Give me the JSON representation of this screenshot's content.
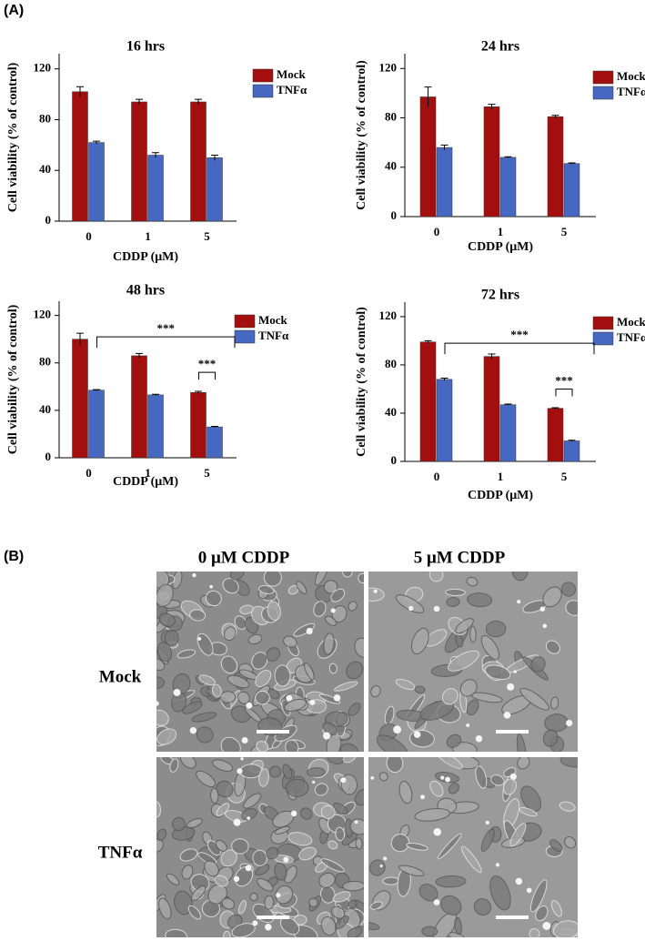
{
  "panels": {
    "a_label": "(A)",
    "b_label": "(B)",
    "columns": [
      "0 μM CDDP",
      "5 μM CDDP"
    ],
    "rows": [
      "Mock",
      "TNFα"
    ]
  },
  "chart_data": [
    {
      "type": "bar",
      "title": "16 hrs",
      "xlabel": "CDDP (μM)",
      "ylabel": "Cell viability (% of control)",
      "categories": [
        "0",
        "1",
        "5"
      ],
      "ylim": [
        0,
        132
      ],
      "yticks": [
        0,
        40,
        80,
        120
      ],
      "legend": "upper right",
      "series": [
        {
          "name": "Mock",
          "color": "#a30f0f",
          "values": [
            102,
            94,
            94
          ],
          "errors": [
            4,
            2,
            2
          ]
        },
        {
          "name": "TNFα",
          "color": "#4668c0",
          "values": [
            62,
            52,
            50
          ],
          "errors": [
            1,
            2,
            2
          ]
        }
      ]
    },
    {
      "type": "bar",
      "title": "24 hrs",
      "xlabel": "CDDP (μM)",
      "ylabel": "Cell viability (% of control)",
      "categories": [
        "0",
        "1",
        "5"
      ],
      "ylim": [
        0,
        132
      ],
      "yticks": [
        0,
        40,
        80,
        120
      ],
      "legend": "upper right",
      "series": [
        {
          "name": "Mock",
          "color": "#a30f0f",
          "values": [
            97,
            89,
            81
          ],
          "errors": [
            8,
            2,
            1
          ]
        },
        {
          "name": "TNFα",
          "color": "#4668c0",
          "values": [
            56,
            48,
            43
          ],
          "errors": [
            2,
            0.5,
            0.5
          ]
        }
      ]
    },
    {
      "type": "bar",
      "title": "48 hrs",
      "xlabel": "CDDP (μM)",
      "ylabel": "Cell viability (% of control)",
      "categories": [
        "0",
        "1",
        "5"
      ],
      "ylim": [
        0,
        132
      ],
      "yticks": [
        0,
        40,
        80,
        120
      ],
      "legend": "upper right",
      "annotations": [
        "***",
        "***"
      ],
      "series": [
        {
          "name": "Mock",
          "color": "#a30f0f",
          "values": [
            100,
            86,
            55
          ],
          "errors": [
            5,
            2,
            1
          ]
        },
        {
          "name": "TNFα",
          "color": "#4668c0",
          "values": [
            57,
            53,
            26
          ],
          "errors": [
            0.5,
            0.5,
            0.5
          ]
        }
      ]
    },
    {
      "type": "bar",
      "title": "72 hrs",
      "xlabel": "CDDP (μM)",
      "ylabel": "Cell viability (% of control)",
      "categories": [
        "0",
        "1",
        "5"
      ],
      "ylim": [
        0,
        132
      ],
      "yticks": [
        0,
        40,
        80,
        120
      ],
      "legend": "upper right",
      "annotations": [
        "***",
        "***"
      ],
      "series": [
        {
          "name": "Mock",
          "color": "#a30f0f",
          "values": [
            99,
            87,
            44
          ],
          "errors": [
            1,
            2,
            0.5
          ]
        },
        {
          "name": "TNFα",
          "color": "#4668c0",
          "values": [
            68,
            47,
            17
          ],
          "errors": [
            1,
            0.5,
            0.5
          ]
        }
      ]
    }
  ]
}
